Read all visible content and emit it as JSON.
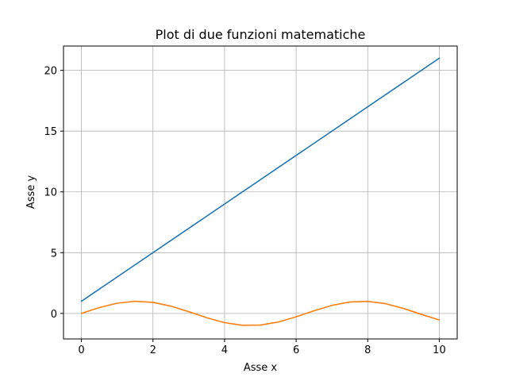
{
  "chart_data": {
    "type": "line",
    "title": "Plot di due funzioni matematiche",
    "xlabel": "Asse x",
    "ylabel": "Asse y",
    "xlim": [
      -0.5,
      10.5
    ],
    "ylim": [
      -2.1,
      22.0
    ],
    "xticks": [
      0,
      2,
      4,
      6,
      8,
      10
    ],
    "yticks": [
      0,
      5,
      10,
      15,
      20
    ],
    "grid": true,
    "series": [
      {
        "color": "#1f77b4",
        "x": [
          0,
          10
        ],
        "y": [
          1,
          21
        ]
      },
      {
        "color": "#ff7f0e",
        "x": [
          0,
          0.5,
          1,
          1.5,
          2,
          2.5,
          3,
          3.5,
          4,
          4.5,
          5,
          5.5,
          6,
          6.5,
          7,
          7.5,
          8,
          8.5,
          9,
          9.5,
          10
        ],
        "y": [
          0,
          0.48,
          0.84,
          1.0,
          0.91,
          0.6,
          0.14,
          -0.35,
          -0.76,
          -0.98,
          -0.96,
          -0.71,
          -0.28,
          0.22,
          0.66,
          0.94,
          0.99,
          0.8,
          0.41,
          -0.08,
          -0.54
        ]
      }
    ]
  }
}
